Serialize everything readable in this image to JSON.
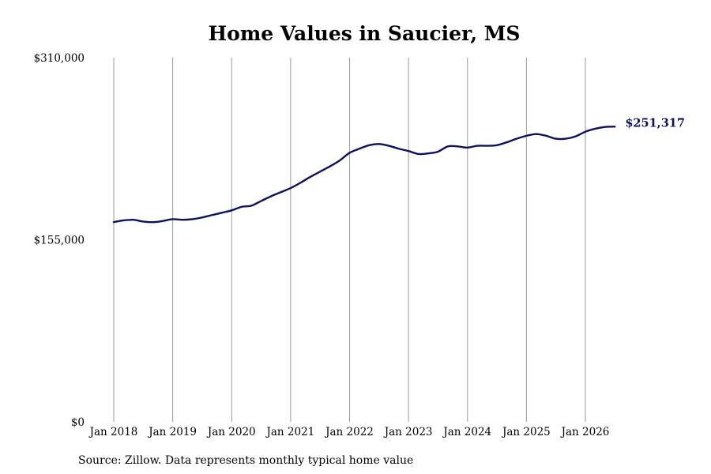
{
  "chart_data": {
    "type": "line",
    "title": "Home Values in Saucier, MS",
    "xlabel": "",
    "ylabel": "",
    "ylim": [
      0,
      310000
    ],
    "y_ticks": [
      {
        "value": 0,
        "label": "$0"
      },
      {
        "value": 155000,
        "label": "$155,000"
      },
      {
        "value": 310000,
        "label": "$310,000"
      }
    ],
    "x_ticks": [
      {
        "value": "2018-01",
        "label": "Jan 2018"
      },
      {
        "value": "2019-01",
        "label": "Jan 2019"
      },
      {
        "value": "2020-01",
        "label": "Jan 2020"
      },
      {
        "value": "2021-01",
        "label": "Jan 2021"
      },
      {
        "value": "2022-01",
        "label": "Jan 2022"
      },
      {
        "value": "2023-01",
        "label": "Jan 2023"
      },
      {
        "value": "2024-01",
        "label": "Jan 2024"
      },
      {
        "value": "2025-01",
        "label": "Jan 2025"
      },
      {
        "value": "2026-01",
        "label": "Jan 2026"
      }
    ],
    "grid": "vertical",
    "line_color": "#0d1060",
    "end_label": "$251,317",
    "series": [
      {
        "x": [
          "2018-01",
          "2018-03",
          "2018-05",
          "2018-07",
          "2018-09",
          "2018-11",
          "2019-01",
          "2019-03",
          "2019-05",
          "2019-07",
          "2019-09",
          "2019-11",
          "2020-01",
          "2020-03",
          "2020-05",
          "2020-07",
          "2020-09",
          "2020-11",
          "2021-01",
          "2021-03",
          "2021-05",
          "2021-07",
          "2021-09",
          "2021-11",
          "2022-01",
          "2022-03",
          "2022-05",
          "2022-07",
          "2022-09",
          "2022-11",
          "2023-01",
          "2023-03",
          "2023-05",
          "2023-07",
          "2023-09",
          "2023-11",
          "2024-01",
          "2024-03",
          "2024-05",
          "2024-07",
          "2024-09",
          "2024-11",
          "2025-01",
          "2025-03",
          "2025-05",
          "2025-07",
          "2025-09",
          "2025-11",
          "2026-01",
          "2026-03",
          "2026-05",
          "2026-07"
        ],
        "values": [
          170000,
          171500,
          172000,
          170500,
          170000,
          171000,
          172500,
          172000,
          172500,
          174000,
          176000,
          178000,
          180000,
          183000,
          184000,
          188000,
          192000,
          195500,
          199000,
          203500,
          208500,
          213000,
          217500,
          222500,
          229000,
          232500,
          235500,
          236500,
          235000,
          232500,
          230500,
          228000,
          228500,
          230000,
          234500,
          234500,
          233500,
          235000,
          235000,
          235500,
          238000,
          241000,
          243500,
          245000,
          243500,
          241000,
          241000,
          243000,
          247000,
          249500,
          251000,
          251317
        ]
      }
    ]
  },
  "source_note": "Source: Zillow. Data represents monthly typical home value"
}
